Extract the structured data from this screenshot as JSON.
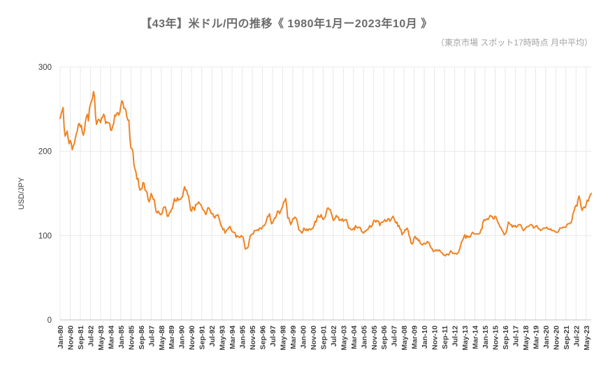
{
  "header": {
    "title": "【43年】米ドル/円の推移《 1980年1月ー2023年10月 》",
    "subtitle": "（東京市場 スポット17時時点 月中平均）"
  },
  "chart_data": {
    "type": "line",
    "title": "【43年】米ドル/円の推移《 1980年1月ー2023年10月 》",
    "subtitle": "（東京市場 スポット17時時点 月中平均）",
    "series_name": "USD/JPY monthly average",
    "xlabel": "",
    "ylabel": "USD/JPY",
    "ylim": [
      0,
      300
    ],
    "y_ticks": [
      0,
      100,
      200,
      300
    ],
    "x_start": "Jan-80",
    "x_end": "Oct-23",
    "x_tick_step": 10,
    "x_tick_labels": [
      "Jan-80",
      "Nov-80",
      "Sep-81",
      "Jul-82",
      "May-83",
      "Mar-84",
      "Jan-85",
      "Nov-85",
      "Sep-86",
      "Jul-87",
      "May-88",
      "Mar-89",
      "Jan-90",
      "Nov-90",
      "Sep-91",
      "Jul-92",
      "May-93",
      "Mar-94",
      "Jan-95",
      "Nov-95",
      "Sep-96",
      "Jul-97",
      "May-98",
      "Mar-99",
      "Jan-00",
      "Nov-00",
      "Sep-01",
      "Jul-02",
      "May-03",
      "Mar-04",
      "Jan-05",
      "Nov-05",
      "Sep-06",
      "Jul-07",
      "May-08",
      "Mar-09",
      "Jan-10",
      "Nov-10",
      "Sep-11",
      "Jul-12",
      "May-13",
      "Mar-14",
      "Jan-15",
      "Nov-15",
      "Sep-16",
      "Jul-17",
      "May-18",
      "Mar-19",
      "Jan-20",
      "Nov-20",
      "Sep-21",
      "Jul-22",
      "May-23"
    ],
    "values": [
      239,
      244,
      248,
      252,
      228,
      218,
      221,
      224,
      215,
      209,
      213,
      210,
      202,
      206,
      209,
      215,
      221,
      224,
      232,
      233,
      229,
      231,
      223,
      219,
      224,
      235,
      241,
      244,
      236,
      251,
      256,
      259,
      263,
      271,
      265,
      242,
      232,
      236,
      238,
      237,
      234,
      240,
      240,
      244,
      242,
      233,
      235,
      234,
      234,
      233,
      225,
      225,
      230,
      233,
      243,
      242,
      245,
      246,
      243,
      246,
      254,
      260,
      258,
      251,
      251,
      249,
      241,
      237,
      237,
      215,
      204,
      203,
      200,
      184,
      179,
      175,
      167,
      168,
      158,
      154,
      155,
      156,
      163,
      162,
      154,
      153,
      151,
      143,
      140,
      144,
      150,
      147,
      143,
      143,
      135,
      128,
      127,
      129,
      127,
      125,
      125,
      127,
      133,
      134,
      134,
      129,
      123,
      123,
      127,
      128,
      131,
      132,
      138,
      144,
      141,
      141,
      145,
      142,
      143,
      143,
      145,
      146,
      153,
      158,
      154,
      154,
      149,
      147,
      139,
      130,
      129,
      134,
      133,
      130,
      137,
      137,
      138,
      140,
      138,
      137,
      134,
      131,
      130,
      128,
      125,
      128,
      133,
      133,
      131,
      127,
      126,
      126,
      122,
      121,
      124,
      124,
      125,
      121,
      117,
      112,
      110,
      107,
      108,
      103,
      105,
      107,
      108,
      110,
      111,
      107,
      105,
      104,
      104,
      103,
      98,
      100,
      99,
      98,
      98,
      100,
      99,
      98,
      91,
      84,
      85,
      85,
      87,
      94,
      100,
      101,
      102,
      102,
      106,
      106,
      106,
      107,
      106,
      109,
      109,
      108,
      110,
      112,
      112,
      114,
      118,
      123,
      123,
      126,
      119,
      114,
      115,
      118,
      121,
      121,
      125,
      129,
      129,
      126,
      129,
      132,
      135,
      140,
      141,
      144,
      134,
      121,
      121,
      117,
      113,
      116,
      120,
      120,
      122,
      121,
      119,
      113,
      107,
      106,
      105,
      103,
      105,
      109,
      107,
      106,
      108,
      106,
      108,
      108,
      107,
      108,
      109,
      112,
      117,
      116,
      121,
      124,
      122,
      122,
      125,
      121,
      119,
      121,
      122,
      127,
      132,
      133,
      131,
      131,
      127,
      123,
      118,
      119,
      121,
      124,
      122,
      122,
      118,
      119,
      118,
      120,
      117,
      118,
      119,
      119,
      115,
      109,
      109,
      108,
      107,
      107,
      109,
      107,
      112,
      110,
      109,
      110,
      110,
      109,
      105,
      104,
      103,
      105,
      105,
      107,
      107,
      109,
      112,
      110,
      111,
      114,
      118,
      118,
      116,
      118,
      117,
      117,
      112,
      115,
      116,
      116,
      117,
      119,
      117,
      117,
      120,
      120,
      117,
      119,
      121,
      123,
      121,
      117,
      115,
      116,
      111,
      112,
      108,
      107,
      101,
      103,
      104,
      107,
      107,
      109,
      106,
      100,
      97,
      91,
      90,
      92,
      98,
      99,
      96,
      97,
      94,
      95,
      91,
      90,
      89,
      90,
      91,
      90,
      91,
      93,
      92,
      91,
      87,
      85,
      84,
      81,
      82,
      83,
      82,
      83,
      82,
      83,
      81,
      80,
      79,
      77,
      77,
      76,
      78,
      78,
      77,
      79,
      82,
      81,
      79,
      79,
      79,
      79,
      78,
      79,
      81,
      84,
      89,
      93,
      95,
      98,
      101,
      97,
      100,
      98,
      99,
      98,
      100,
      103,
      104,
      102,
      102,
      102,
      102,
      102,
      102,
      103,
      107,
      108,
      116,
      119,
      118,
      119,
      120,
      119,
      121,
      124,
      123,
      123,
      120,
      120,
      123,
      122,
      118,
      115,
      113,
      110,
      109,
      106,
      104,
      101,
      102,
      104,
      109,
      116,
      115,
      113,
      113,
      110,
      112,
      111,
      112,
      110,
      111,
      113,
      113,
      113,
      111,
      108,
      106,
      107,
      109,
      110,
      111,
      111,
      112,
      113,
      113,
      112,
      109,
      110,
      111,
      112,
      110,
      108,
      108,
      106,
      107,
      108,
      109,
      109,
      109,
      110,
      108,
      108,
      107,
      108,
      106,
      106,
      106,
      105,
      104,
      104,
      104,
      106,
      109,
      109,
      109,
      110,
      110,
      110,
      110,
      113,
      114,
      114,
      115,
      115,
      119,
      126,
      129,
      134,
      136,
      135,
      143,
      147,
      142,
      134,
      130,
      133,
      134,
      133,
      137,
      142,
      141,
      145,
      148,
      150
    ],
    "grid": "on",
    "legend_position": "none",
    "colors": {
      "line": "#ef8322",
      "grid": "#e8e8e8",
      "axis": "#c0c0c0",
      "tick_text": "#3c3c3c",
      "title": "#6b6b6b",
      "subtitle": "#a3a3a3"
    }
  }
}
